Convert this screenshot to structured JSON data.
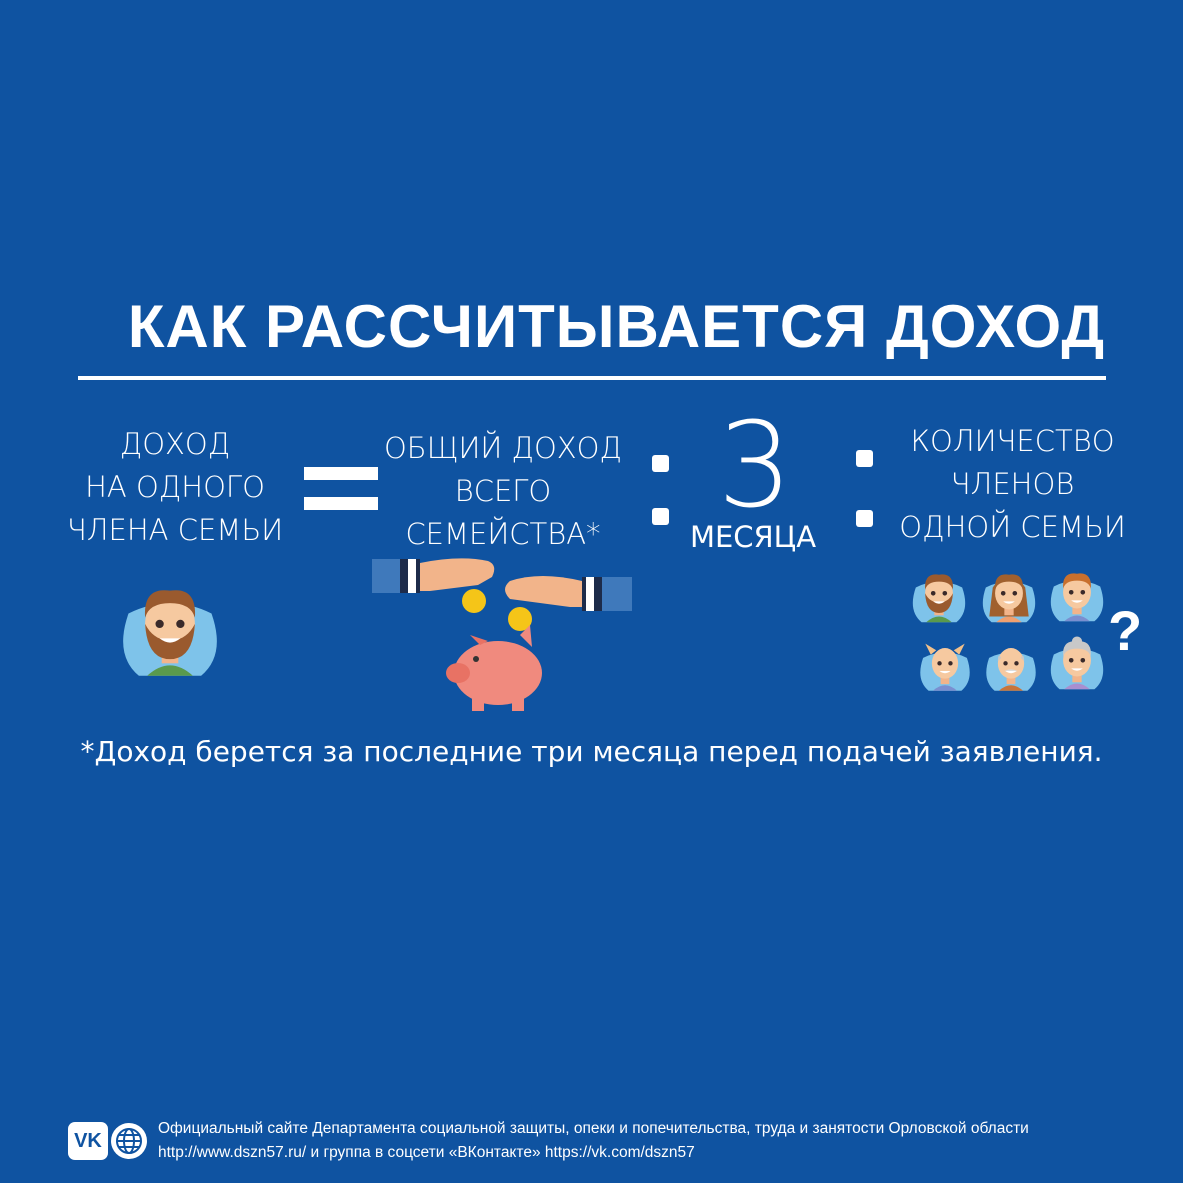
{
  "title": "КАК РАССЧИТЫВАЕТСЯ ДОХОД",
  "formula": {
    "left": [
      "ДОХОД",
      "НА ОДНОГО",
      "ЧЛЕНА СЕМЬИ"
    ],
    "middle": [
      "ОБЩИЙ ДОХОД",
      "ВСЕГО",
      "СЕМЕЙСТВА*"
    ],
    "divisor_number": "3",
    "divisor_unit": "МЕСЯЦА",
    "right": [
      "КОЛИЧЕСТВО",
      "ЧЛЕНОВ",
      "ОДНОЙ СЕМЬИ"
    ],
    "question_mark": "?"
  },
  "icons": {
    "left": "bearded-man-avatar-icon",
    "middle": "hands-coins-piggy-bank-icon",
    "family": [
      "bearded-man-avatar-icon",
      "woman-avatar-icon",
      "boy-avatar-icon",
      "girl-avatar-icon",
      "grandfather-avatar-icon",
      "grandmother-avatar-icon"
    ]
  },
  "footnote": "*Доход берется за последние три месяца перед подачей заявления.",
  "footer": {
    "vk_logo": "VK",
    "line1": "Официальный сайте Департамента социальной защиты, опеки и попечительства, труда и занятости Орловской области",
    "line2": "http://www.dszn57.ru/ и группа в соцсети «ВКонтакте» https://vk.com/dszn57"
  },
  "colors": {
    "background": "#0f53a1",
    "text": "#ffffff",
    "avatar_bg": "#7ec3ea",
    "piggy": "#f08a7e",
    "coin": "#f5c518"
  }
}
